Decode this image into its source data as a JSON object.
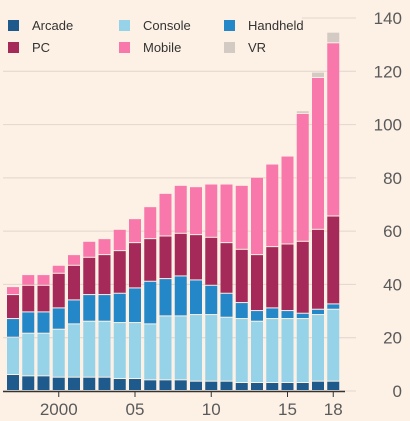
{
  "chart_data": {
    "type": "bar",
    "stacked": true,
    "categories": [
      "1997",
      "1998",
      "1999",
      "2000",
      "2001",
      "2002",
      "2003",
      "2004",
      "2005",
      "2006",
      "2007",
      "2008",
      "2009",
      "2010",
      "2011",
      "2012",
      "2013",
      "2014",
      "2015",
      "2016",
      "2017",
      "2018"
    ],
    "x_tick_labels": [
      {
        "category": "2000",
        "label": "2000"
      },
      {
        "category": "2005",
        "label": "05"
      },
      {
        "category": "2010",
        "label": "10"
      },
      {
        "category": "2015",
        "label": "15"
      },
      {
        "category": "2018",
        "label": "18"
      }
    ],
    "series": [
      {
        "name": "Arcade",
        "color": "#1f5a8c",
        "values": [
          6,
          5.5,
          5.5,
          5,
          5,
          5,
          5,
          4.5,
          4.5,
          4,
          4,
          4,
          3.5,
          3.5,
          3.5,
          3,
          3,
          3,
          3,
          3,
          3.5,
          3.5
        ]
      },
      {
        "name": "Console",
        "color": "#96d3e8",
        "values": [
          14,
          16,
          16,
          18,
          20,
          21,
          21,
          21,
          21,
          21,
          24,
          24,
          25,
          25,
          24,
          24,
          23,
          24,
          24,
          24,
          25,
          27
        ]
      },
      {
        "name": "Handheld",
        "color": "#2487c7",
        "values": [
          7,
          8,
          8,
          8,
          9,
          10,
          10,
          11,
          13,
          16,
          14,
          15,
          13,
          11,
          9,
          6,
          4,
          4,
          3,
          2,
          2,
          2
        ]
      },
      {
        "name": "PC",
        "color": "#a52a5a",
        "values": [
          9,
          10,
          10,
          13,
          13,
          14,
          15,
          16,
          17,
          16,
          16,
          16,
          17,
          18,
          19,
          20,
          21,
          23,
          25,
          27,
          30,
          33
        ]
      },
      {
        "name": "Mobile",
        "color": "#f978ab",
        "values": [
          3,
          4,
          4,
          3,
          4,
          6,
          6,
          8,
          9,
          12,
          16,
          18,
          18,
          20,
          22,
          24,
          29,
          31,
          33,
          48,
          57,
          65
        ]
      },
      {
        "name": "VR",
        "color": "#d3cac4",
        "values": [
          0,
          0,
          0,
          0,
          0,
          0,
          0,
          0,
          0,
          0,
          0,
          0,
          0,
          0,
          0,
          0,
          0,
          0,
          0,
          1,
          2,
          4
        ]
      }
    ],
    "y_ticks": [
      0,
      20,
      40,
      60,
      80,
      100,
      120,
      140
    ],
    "ylim": [
      0,
      140
    ],
    "grid": true,
    "y_axis_side": "right",
    "legend_position": "top-left"
  }
}
